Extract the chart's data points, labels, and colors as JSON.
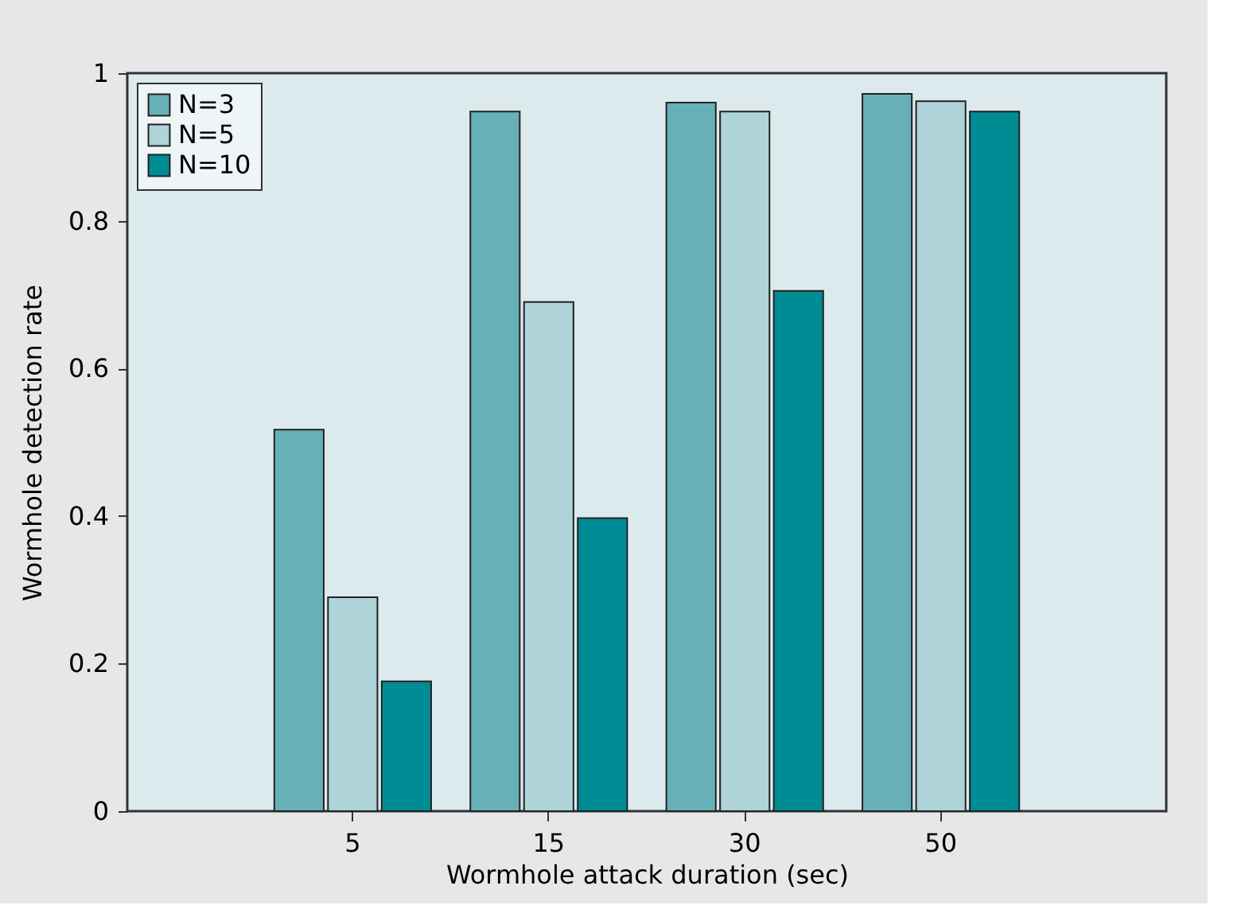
{
  "chart_data": {
    "type": "bar",
    "xlabel": "Wormhole attack duration (sec)",
    "ylabel": "Wormhole detection rate",
    "categories": [
      "5",
      "15",
      "30",
      "50"
    ],
    "series": [
      {
        "name": "N=3",
        "color": "#67b0b8",
        "values": [
          0.517,
          0.948,
          0.96,
          0.972
        ]
      },
      {
        "name": "N=5",
        "color": "#aed3d8",
        "values": [
          0.29,
          0.69,
          0.948,
          0.962
        ]
      },
      {
        "name": "N=10",
        "color": "#008c94",
        "values": [
          0.176,
          0.397,
          0.705,
          0.948
        ]
      }
    ],
    "ylim": [
      0,
      1
    ],
    "yticks": [
      0,
      0.2,
      0.4,
      0.6,
      0.8,
      1
    ],
    "grid": false,
    "legend": "top left"
  }
}
